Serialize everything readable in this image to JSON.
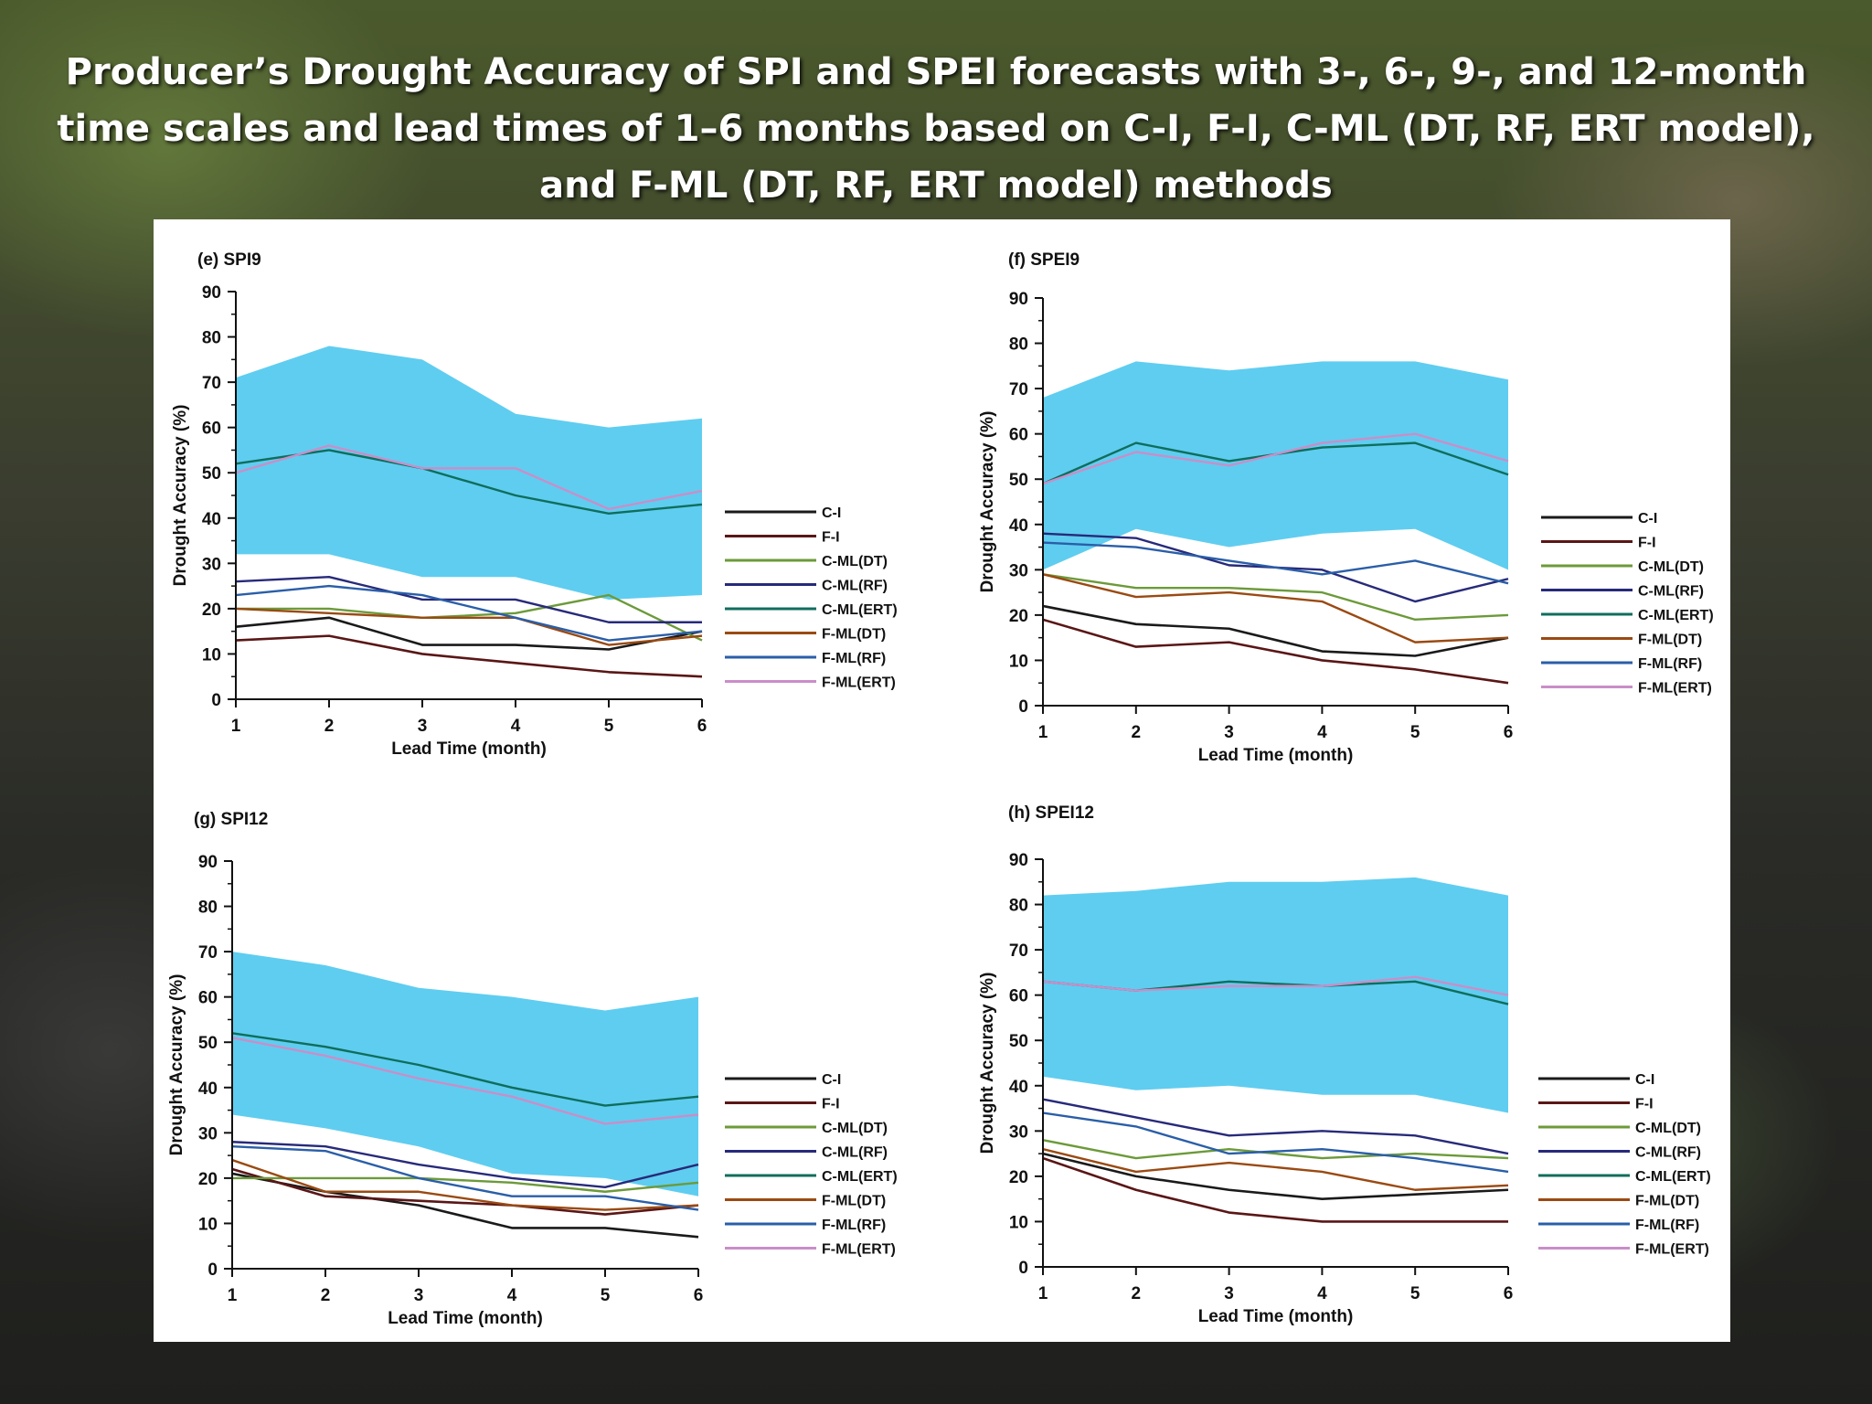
{
  "slide": {
    "title": "Producer’s Drought Accuracy of SPI and SPEI forecasts with 3-, 6-, 9-, and 12-month time scales and lead times of 1–6 months based on C-I, F-I, C-ML (DT, RF, ERT model), and F-ML (DT, RF, ERT model) methods"
  },
  "colors": {
    "band": "#5fcdf0",
    "C-I": "#1a1a1a",
    "F-I": "#5a1616",
    "C-ML(DT)": "#6c9a3a",
    "C-ML(RF)": "#272a7a",
    "C-ML(ERT)": "#0f6e5c",
    "F-ML(DT)": "#9a4a12",
    "F-ML(RF)": "#2a5ea8",
    "F-ML(ERT)": "#c98ec8"
  },
  "chart_data": [
    {
      "type": "line",
      "title": "(e) SPI9",
      "xlabel": "Lead Time (month)",
      "ylabel": "Drought Accuracy (%)",
      "x": [
        1,
        2,
        3,
        4,
        5,
        6
      ],
      "ylim": [
        0,
        90
      ],
      "yticks": [
        0,
        10,
        20,
        30,
        40,
        50,
        60,
        70,
        80,
        90
      ],
      "band": {
        "lower": [
          32,
          32,
          27,
          27,
          22,
          23
        ],
        "upper": [
          71,
          78,
          75,
          63,
          60,
          62
        ]
      },
      "series": [
        {
          "name": "C-I",
          "values": [
            16,
            18,
            12,
            12,
            11,
            15
          ]
        },
        {
          "name": "F-I",
          "values": [
            13,
            14,
            10,
            8,
            6,
            5
          ]
        },
        {
          "name": "C-ML(DT)",
          "values": [
            20,
            20,
            18,
            19,
            23,
            13
          ]
        },
        {
          "name": "C-ML(RF)",
          "values": [
            26,
            27,
            22,
            22,
            17,
            17
          ]
        },
        {
          "name": "C-ML(ERT)",
          "values": [
            52,
            55,
            51,
            45,
            41,
            43
          ]
        },
        {
          "name": "F-ML(DT)",
          "values": [
            20,
            19,
            18,
            18,
            12,
            14
          ]
        },
        {
          "name": "F-ML(RF)",
          "values": [
            23,
            25,
            23,
            18,
            13,
            15
          ]
        },
        {
          "name": "F-ML(ERT)",
          "values": [
            50,
            56,
            51,
            51,
            42,
            46
          ]
        }
      ]
    },
    {
      "type": "line",
      "title": "(f) SPEI9",
      "xlabel": "Lead Time (month)",
      "ylabel": "Drought Accuracy (%)",
      "x": [
        1,
        2,
        3,
        4,
        5,
        6
      ],
      "ylim": [
        0,
        90
      ],
      "yticks": [
        0,
        10,
        20,
        30,
        40,
        50,
        60,
        70,
        80,
        90
      ],
      "band": {
        "lower": [
          30,
          39,
          35,
          38,
          39,
          30
        ],
        "upper": [
          68,
          76,
          74,
          76,
          76,
          72
        ]
      },
      "series": [
        {
          "name": "C-I",
          "values": [
            22,
            18,
            17,
            12,
            11,
            15
          ]
        },
        {
          "name": "F-I",
          "values": [
            19,
            13,
            14,
            10,
            8,
            5
          ]
        },
        {
          "name": "C-ML(DT)",
          "values": [
            29,
            26,
            26,
            25,
            19,
            20
          ]
        },
        {
          "name": "C-ML(RF)",
          "values": [
            38,
            37,
            31,
            30,
            23,
            28
          ]
        },
        {
          "name": "C-ML(ERT)",
          "values": [
            49,
            58,
            54,
            57,
            58,
            51
          ]
        },
        {
          "name": "F-ML(DT)",
          "values": [
            29,
            24,
            25,
            23,
            14,
            15
          ]
        },
        {
          "name": "F-ML(RF)",
          "values": [
            36,
            35,
            32,
            29,
            32,
            27
          ]
        },
        {
          "name": "F-ML(ERT)",
          "values": [
            49,
            56,
            53,
            58,
            60,
            54
          ]
        }
      ]
    },
    {
      "type": "line",
      "title": "(g) SPI12",
      "xlabel": "Lead Time (month)",
      "ylabel": "Drought Accuracy (%)",
      "x": [
        1,
        2,
        3,
        4,
        5,
        6
      ],
      "ylim": [
        0,
        90
      ],
      "yticks": [
        0,
        10,
        20,
        30,
        40,
        50,
        60,
        70,
        80,
        90
      ],
      "band": {
        "lower": [
          34,
          31,
          27,
          21,
          20,
          16
        ],
        "upper": [
          70,
          67,
          62,
          60,
          57,
          60
        ]
      },
      "series": [
        {
          "name": "C-I",
          "values": [
            21,
            17,
            14,
            9,
            9,
            7
          ]
        },
        {
          "name": "F-I",
          "values": [
            22,
            16,
            15,
            14,
            12,
            14
          ]
        },
        {
          "name": "C-ML(DT)",
          "values": [
            20,
            20,
            20,
            19,
            17,
            19
          ]
        },
        {
          "name": "C-ML(RF)",
          "values": [
            28,
            27,
            23,
            20,
            18,
            23
          ]
        },
        {
          "name": "C-ML(ERT)",
          "values": [
            52,
            49,
            45,
            40,
            36,
            38
          ]
        },
        {
          "name": "F-ML(DT)",
          "values": [
            24,
            17,
            17,
            14,
            13,
            14
          ]
        },
        {
          "name": "F-ML(RF)",
          "values": [
            27,
            26,
            20,
            16,
            16,
            13
          ]
        },
        {
          "name": "F-ML(ERT)",
          "values": [
            51,
            47,
            42,
            38,
            32,
            34
          ]
        }
      ]
    },
    {
      "type": "line",
      "title": "(h) SPEI12",
      "xlabel": "Lead Time (month)",
      "ylabel": "Drought Accuracy (%)",
      "x": [
        1,
        2,
        3,
        4,
        5,
        6
      ],
      "ylim": [
        0,
        90
      ],
      "yticks": [
        0,
        10,
        20,
        30,
        40,
        50,
        60,
        70,
        80,
        90
      ],
      "band": {
        "lower": [
          42,
          39,
          40,
          38,
          38,
          34
        ],
        "upper": [
          82,
          83,
          85,
          85,
          86,
          82
        ]
      },
      "series": [
        {
          "name": "C-I",
          "values": [
            25,
            20,
            17,
            15,
            16,
            17
          ]
        },
        {
          "name": "F-I",
          "values": [
            24,
            17,
            12,
            10,
            10,
            10
          ]
        },
        {
          "name": "C-ML(DT)",
          "values": [
            28,
            24,
            26,
            24,
            25,
            24
          ]
        },
        {
          "name": "C-ML(RF)",
          "values": [
            37,
            33,
            29,
            30,
            29,
            25
          ]
        },
        {
          "name": "C-ML(ERT)",
          "values": [
            63,
            61,
            63,
            62,
            63,
            58
          ]
        },
        {
          "name": "F-ML(DT)",
          "values": [
            26,
            21,
            23,
            21,
            17,
            18
          ]
        },
        {
          "name": "F-ML(RF)",
          "values": [
            34,
            31,
            25,
            26,
            24,
            21
          ]
        },
        {
          "name": "F-ML(ERT)",
          "values": [
            63,
            61,
            62,
            62,
            64,
            60
          ]
        }
      ]
    }
  ]
}
